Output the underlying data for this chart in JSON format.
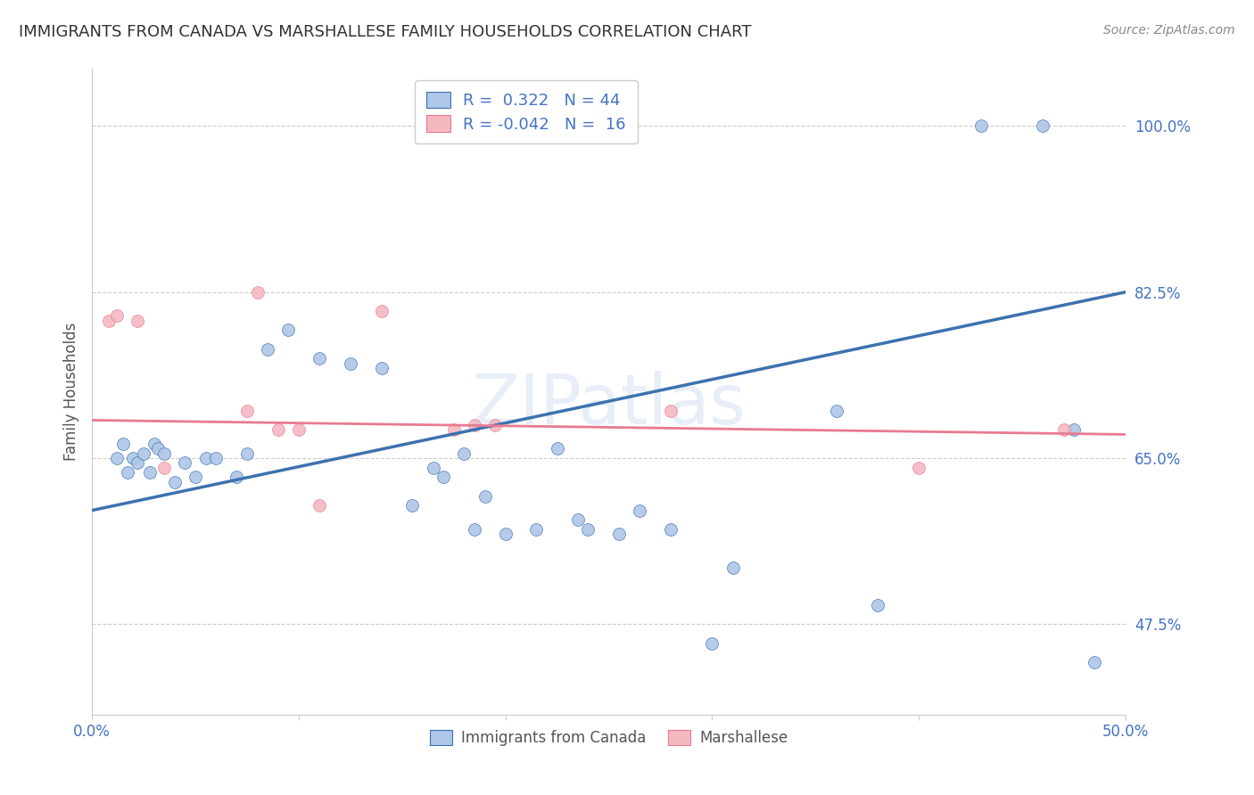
{
  "title": "IMMIGRANTS FROM CANADA VS MARSHALLESE FAMILY HOUSEHOLDS CORRELATION CHART",
  "source": "Source: ZipAtlas.com",
  "ylabel": "Family Households",
  "xlim": [
    0.0,
    50.0
  ],
  "ylim": [
    38.0,
    106.0
  ],
  "yticks": [
    47.5,
    65.0,
    82.5,
    100.0
  ],
  "ytick_labels": [
    "47.5%",
    "65.0%",
    "82.5%",
    "100.0%"
  ],
  "xticks": [
    0.0,
    10.0,
    20.0,
    30.0,
    40.0,
    50.0
  ],
  "xtick_labels": [
    "0.0%",
    "",
    "",
    "",
    "",
    "50.0%"
  ],
  "blue_R": 0.322,
  "blue_N": 44,
  "pink_R": -0.042,
  "pink_N": 16,
  "blue_color": "#aec6e8",
  "blue_line_color": "#3c72af",
  "pink_color": "#f4b8c1",
  "pink_line_color": "#e87a90",
  "watermark": "ZIPatlas",
  "blue_x": [
    1.2,
    1.5,
    1.7,
    2.0,
    2.2,
    2.5,
    2.8,
    3.0,
    3.2,
    3.5,
    4.0,
    4.5,
    5.0,
    5.5,
    6.0,
    7.0,
    7.5,
    8.5,
    9.5,
    11.0,
    12.5,
    14.0,
    15.5,
    16.5,
    17.0,
    18.0,
    18.5,
    19.0,
    20.0,
    21.5,
    22.5,
    23.5,
    24.0,
    25.5,
    26.5,
    28.0,
    30.0,
    31.0,
    36.0,
    38.0,
    43.0,
    46.0,
    47.5,
    48.5
  ],
  "blue_y": [
    65.0,
    66.5,
    63.5,
    65.0,
    64.5,
    65.5,
    63.5,
    66.5,
    66.0,
    65.5,
    62.5,
    64.5,
    63.0,
    65.0,
    65.0,
    63.0,
    65.5,
    76.5,
    78.5,
    75.5,
    75.0,
    74.5,
    60.0,
    64.0,
    63.0,
    65.5,
    57.5,
    61.0,
    57.0,
    57.5,
    66.0,
    58.5,
    57.5,
    57.0,
    59.5,
    57.5,
    45.5,
    53.5,
    70.0,
    49.5,
    100.0,
    100.0,
    68.0,
    43.5
  ],
  "pink_x": [
    0.8,
    1.2,
    2.2,
    3.5,
    7.5,
    8.0,
    9.0,
    10.0,
    11.0,
    14.0,
    17.5,
    18.5,
    19.5,
    28.0,
    40.0,
    47.0
  ],
  "pink_y": [
    79.5,
    80.0,
    79.5,
    64.0,
    70.0,
    82.5,
    68.0,
    68.0,
    60.0,
    80.5,
    68.0,
    68.5,
    68.5,
    70.0,
    64.0,
    68.0
  ],
  "blue_line_x0": 0.0,
  "blue_line_x1": 50.0,
  "blue_line_y0": 59.5,
  "blue_line_y1": 82.5,
  "pink_line_x0": 0.0,
  "pink_line_x1": 50.0,
  "pink_line_y0": 69.0,
  "pink_line_y1": 67.5,
  "grid_color": "#cccccc",
  "background_color": "#ffffff",
  "title_color": "#333333",
  "axis_color": "#4472c4",
  "marker_size": 100
}
